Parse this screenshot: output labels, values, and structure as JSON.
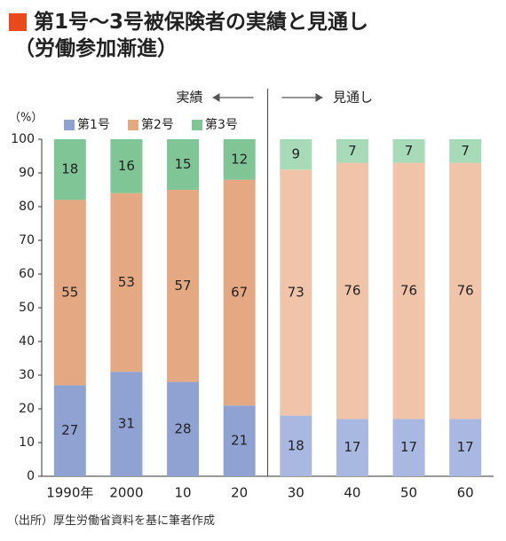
{
  "title": "第1号～3号被保険者の実績と見通し",
  "subtitle": "（労働参加漸進）",
  "source": "（出所）厚生労働省資料を基に筆者作成",
  "colors": {
    "title_marker": "#e8491d",
    "series_past": [
      "#8fa2d2",
      "#e4a882",
      "#7fc596"
    ],
    "series_future": [
      "#a9b8e0",
      "#f0c4a8",
      "#a7dbb8"
    ]
  },
  "chart_data": {
    "type": "bar",
    "stacked": true,
    "ylabel": "（%）",
    "ylim": [
      0,
      100
    ],
    "yticks": [
      "0",
      "10",
      "20",
      "30",
      "40",
      "50",
      "60",
      "70",
      "80",
      "90",
      "100"
    ],
    "categories": [
      "1990年",
      "2000",
      "10",
      "20",
      "30",
      "40",
      "50",
      "60"
    ],
    "series": [
      {
        "name": "第1号",
        "values": [
          27,
          31,
          28,
          21,
          18,
          17,
          17,
          17
        ]
      },
      {
        "name": "第2号",
        "values": [
          55,
          53,
          57,
          67,
          73,
          76,
          76,
          76
        ]
      },
      {
        "name": "第3号",
        "values": [
          18,
          16,
          15,
          12,
          9,
          7,
          7,
          7
        ]
      }
    ],
    "legend_position": "top-left",
    "annotations": {
      "actual": "実績",
      "projection": "見通し"
    },
    "divider_after_index": 3,
    "grid": false
  }
}
